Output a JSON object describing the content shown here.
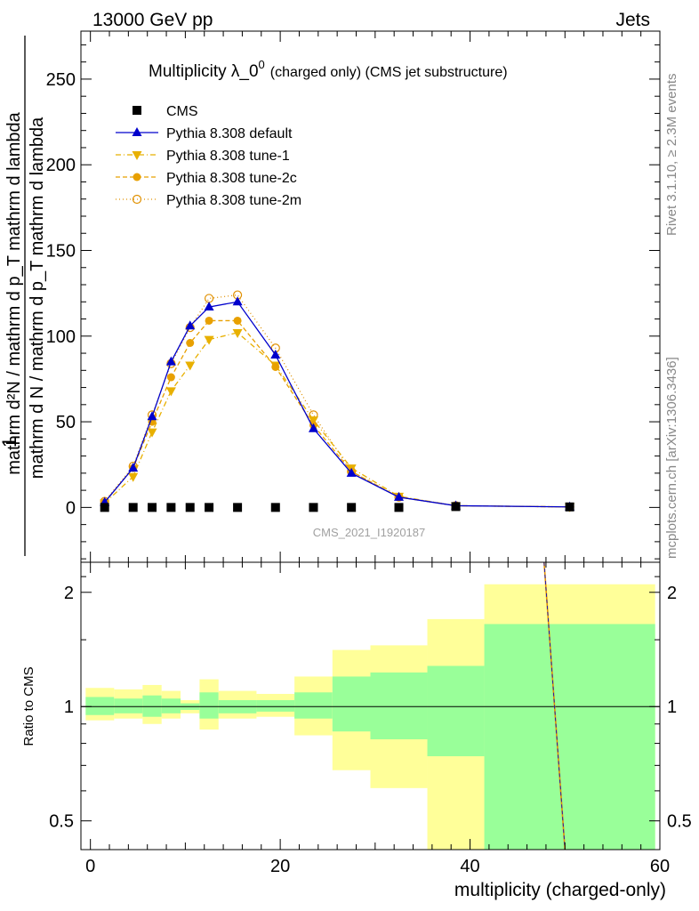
{
  "header": {
    "left": "13000 GeV pp",
    "right": "Jets"
  },
  "side_labels": {
    "rivet": "Rivet 3.1.10, ≥ 2.3M events",
    "mcplots": "mcplots.cern.ch [arXiv:1306.3436]"
  },
  "watermark": "CMS_2021_I1920187",
  "main_panel": {
    "title_main": "Multiplicity λ_0",
    "title_sup": "0",
    "title_rest": "(charged only) (CMS jet substructure)",
    "ylabel_numerator": "1",
    "ylabel_denominator": "mathrm d N / mathrm d p_T mathrm d lambda",
    "ylabel_top": "mathrm d²N / mathrm d p_T mathrm d lambda",
    "ytick_labels": [
      "0",
      "50",
      "100",
      "150",
      "200",
      "250"
    ]
  },
  "ratio_panel": {
    "ylabel": "Ratio to CMS",
    "ytick_labels": [
      "0.5",
      "1",
      "2"
    ],
    "xtick_labels": [
      "0",
      "20",
      "40",
      "60"
    ],
    "xlabel": "multiplicity (charged-only)"
  },
  "legend": [
    {
      "label": "CMS",
      "color": "#000000",
      "marker": "square",
      "line": "none"
    },
    {
      "label": "Pythia 8.308 default",
      "color": "#0000cc",
      "marker": "triangle-up",
      "line": "solid"
    },
    {
      "label": "Pythia 8.308 tune-1",
      "color": "#e8b000",
      "marker": "triangle-down",
      "line": "dashdot"
    },
    {
      "label": "Pythia 8.308 tune-2c",
      "color": "#e8a000",
      "marker": "circle",
      "line": "dashed"
    },
    {
      "label": "Pythia 8.308 tune-2m",
      "color": "#e09000",
      "marker": "open-circle",
      "line": "dotted"
    }
  ],
  "chart_data": {
    "type": "line",
    "x": [
      1.5,
      4.5,
      6.5,
      8.5,
      10.5,
      12.5,
      15.5,
      19.5,
      23.5,
      27.5,
      32.5,
      38.5,
      50.5
    ],
    "xlim": [
      -1,
      60
    ],
    "ylim": [
      -32,
      278
    ],
    "series": [
      {
        "name": "CMS",
        "values": [
          0,
          0,
          0,
          0,
          0,
          0,
          0,
          0,
          0,
          0,
          0,
          0.5,
          0.3
        ]
      },
      {
        "name": "Pythia 8.308 default",
        "values": [
          3,
          23,
          53,
          85,
          106,
          117,
          120,
          89,
          46,
          20,
          6,
          1,
          0.3
        ]
      },
      {
        "name": "Pythia 8.308 tune-1",
        "values": [
          2.5,
          18,
          44,
          68,
          83,
          98,
          102,
          83,
          51,
          23,
          6.5,
          1,
          0.3
        ]
      },
      {
        "name": "Pythia 8.308 tune-2c",
        "values": [
          3,
          23,
          50,
          76,
          96,
          109,
          109,
          82,
          48,
          21,
          6,
          1,
          0.3
        ]
      },
      {
        "name": "Pythia 8.308 tune-2m",
        "values": [
          3.5,
          24,
          54,
          84,
          105,
          122,
          124,
          93,
          54,
          21,
          6,
          1,
          0.3
        ]
      }
    ],
    "ratio": {
      "ylim": [
        0.42,
        2.4
      ],
      "log_scale": true,
      "bin_edges": [
        -0.5,
        2.5,
        5.5,
        7.5,
        9.5,
        11.5,
        13.5,
        17.5,
        21.5,
        25.5,
        29.5,
        35.5,
        41.5,
        59.5
      ],
      "yellow_low": [
        0.92,
        0.93,
        0.9,
        0.93,
        0.96,
        0.87,
        0.93,
        0.94,
        0.84,
        0.68,
        0.61,
        0.3,
        0.3
      ],
      "yellow_high": [
        1.12,
        1.11,
        1.14,
        1.1,
        1.04,
        1.18,
        1.1,
        1.08,
        1.2,
        1.41,
        1.45,
        1.7,
        2.1
      ],
      "green_low": [
        0.95,
        0.96,
        0.94,
        0.96,
        0.98,
        0.93,
        0.96,
        0.97,
        0.93,
        0.86,
        0.82,
        0.74,
        0.38
      ],
      "green_high": [
        1.06,
        1.05,
        1.07,
        1.05,
        1.02,
        1.09,
        1.04,
        1.04,
        1.09,
        1.2,
        1.23,
        1.28,
        1.65
      ],
      "model_line_x": [
        47.8,
        50.0
      ]
    }
  }
}
